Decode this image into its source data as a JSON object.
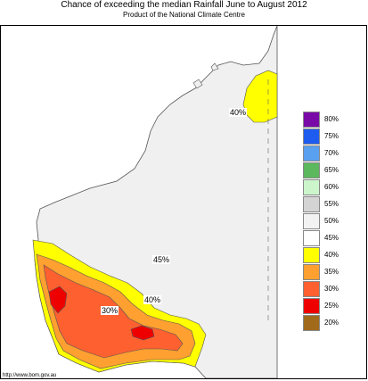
{
  "title": "Chance of exceeding the median Rainfall June to August 2012",
  "subtitle": "Product of the National Climate Centre",
  "contour_labels": [
    "40%",
    "45%",
    "40%",
    "30%"
  ],
  "legend": {
    "entries": [
      {
        "label": "80%",
        "color": "#7a0aa8"
      },
      {
        "label": "75%",
        "color": "#1e5cf0"
      },
      {
        "label": "70%",
        "color": "#5aa0f0"
      },
      {
        "label": "65%",
        "color": "#5cb85c"
      },
      {
        "label": "60%",
        "color": "#ccf5cc"
      },
      {
        "label": "55%",
        "color": "#d4d4d4"
      },
      {
        "label": "50%",
        "color": "#f2f2f2"
      },
      {
        "label": "45%",
        "color": "#ffffff"
      },
      {
        "label": "40%",
        "color": "#ffff00"
      },
      {
        "label": "35%",
        "color": "#ffa030"
      },
      {
        "label": "30%",
        "color": "#ff6030"
      },
      {
        "label": "25%",
        "color": "#ee0000"
      },
      {
        "label": "20%",
        "color": "#a06a1a"
      }
    ]
  },
  "colors": {
    "land": "#f0f0f0",
    "band_40": "#ffff00",
    "band_35": "#ffa030",
    "band_30": "#ff6030",
    "band_25": "#ee0000"
  },
  "credit": "http://www.bom.gov.au"
}
